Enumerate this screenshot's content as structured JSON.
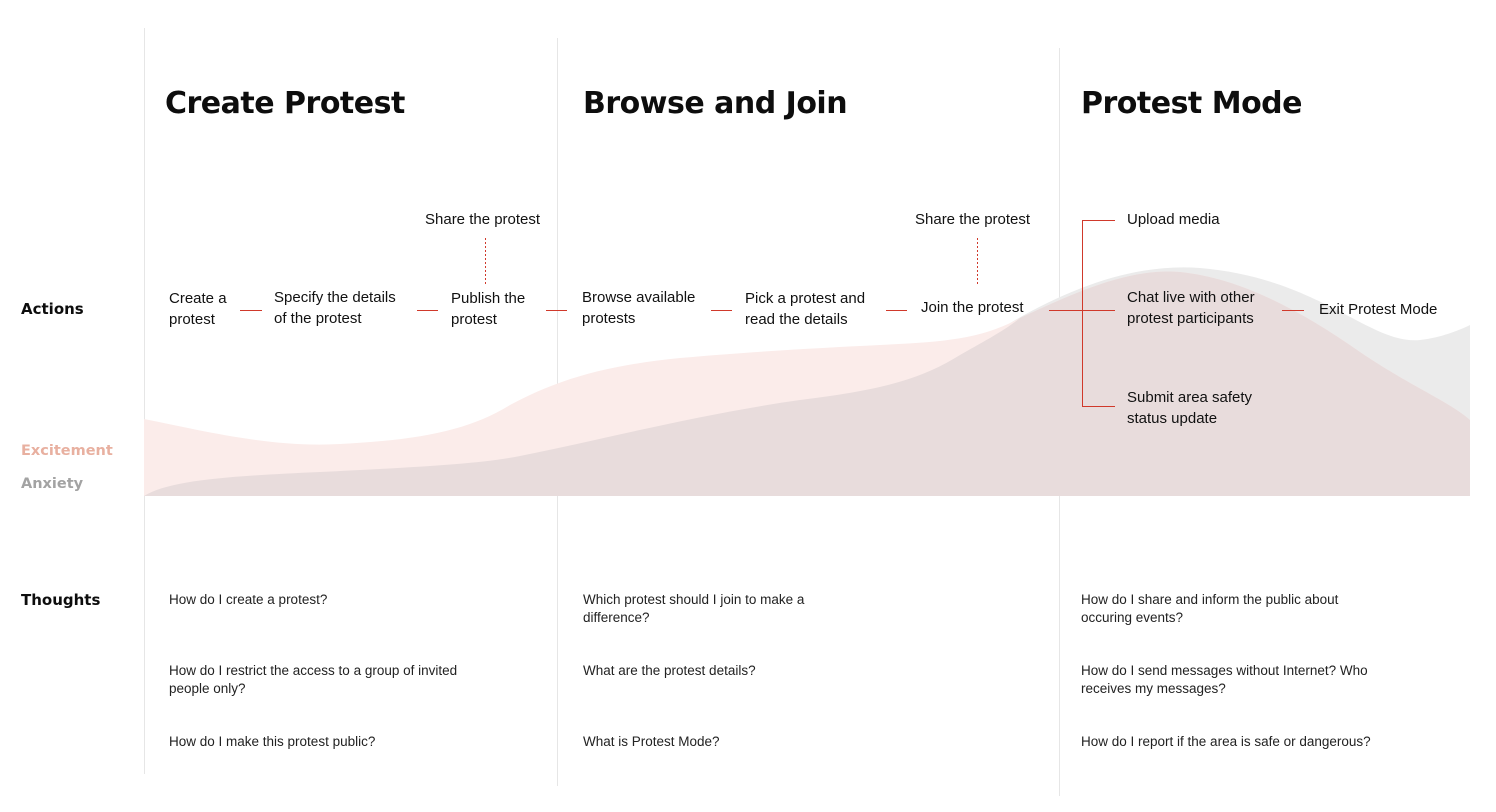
{
  "rows": {
    "actions": "Actions",
    "thoughts": "Thoughts"
  },
  "emotions": {
    "excitement": {
      "label": "Excitement",
      "color": "#e8b0a0",
      "fill": "#fbecea"
    },
    "anxiety": {
      "label": "Anxiety",
      "color": "#a3a3a3",
      "fill": "#ebebeb"
    },
    "overlap_fill": "#e8dcdc"
  },
  "accent_color": "#d0392b",
  "phases": [
    {
      "title": "Create Protest",
      "actions": {
        "create": "Create a\nprotest",
        "specify": "Specify the details\nof the protest",
        "publish": "Publish the\nprotest",
        "share": "Share the protest"
      },
      "thoughts": [
        "How do I create a protest?",
        "How do I  restrict the access to a group of invited people only?",
        "How do I  make this protest public?"
      ]
    },
    {
      "title": "Browse and Join",
      "actions": {
        "browse": "Browse available\nprotests",
        "pick": "Pick a protest and\nread the details",
        "join": "Join the protest",
        "share": "Share the protest"
      },
      "thoughts": [
        "Which protest should I join to make a difference?",
        "What are the protest details?",
        "What is Protest Mode?"
      ]
    },
    {
      "title": "Protest Mode",
      "actions": {
        "upload": "Upload media",
        "chat": "Chat live with other\nprotest participants",
        "submit": "Submit area safety\nstatus update",
        "exit": "Exit Protest Mode"
      },
      "thoughts": [
        "How do I share and inform the public about occuring events?",
        "How do I send messages without Internet? Who receives my messages?",
        "How do I report if the area is safe or dangerous?"
      ]
    }
  ]
}
